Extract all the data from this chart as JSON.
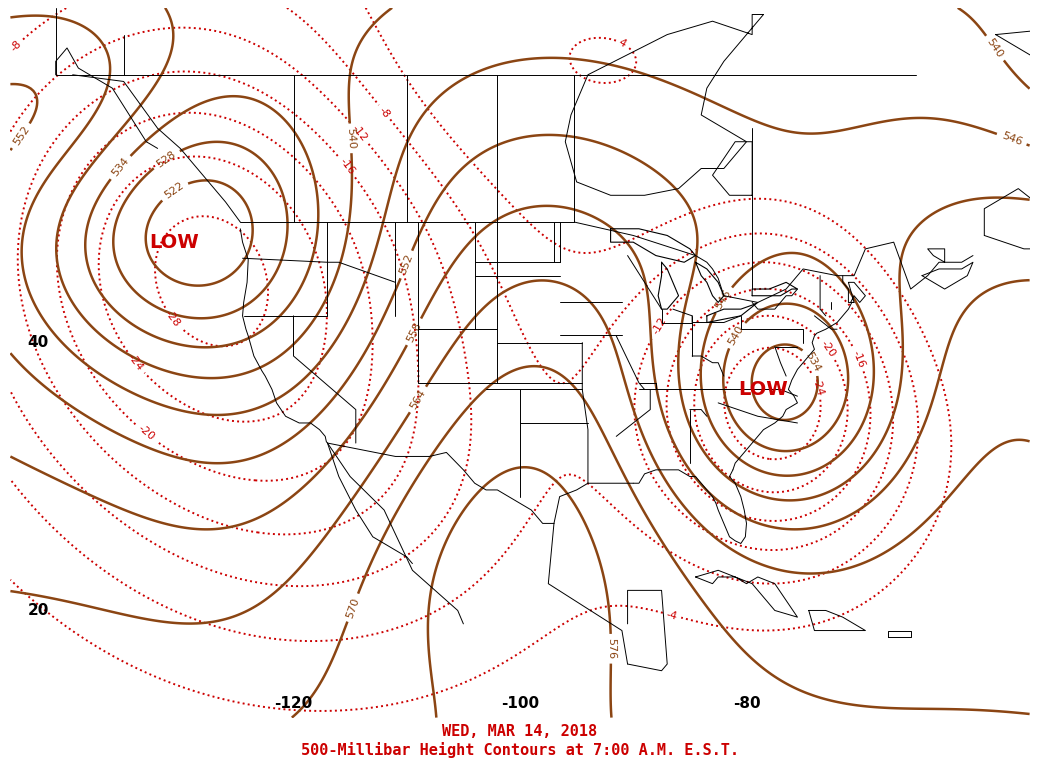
{
  "title_line1": "WED, MAR 14, 2018",
  "title_line2": "500-Millibar Height Contours at 7:00 A.M. E.S.T.",
  "title_color": "#cc0000",
  "background_color": "#ffffff",
  "contour_color": "#8B4513",
  "dotted_color": "#cc0000",
  "label_color_black": "#000000",
  "figsize": [
    10.4,
    7.8
  ],
  "dpi": 100,
  "lon_min": -145,
  "lon_max": -55,
  "lat_min": 12,
  "lat_max": 65,
  "lat_labels": [
    [
      "40",
      -0.08,
      40
    ],
    [
      "20",
      -0.08,
      20
    ]
  ],
  "lon_labels": [
    [
      "-120",
      -120,
      11.0
    ],
    [
      "-100",
      -100,
      11.0
    ],
    [
      "-80",
      -80,
      11.0
    ]
  ],
  "low_labels": [
    {
      "text": "LOW",
      "lon": -130.5,
      "lat": 47.5
    },
    {
      "text": "LOW",
      "lon": -78.5,
      "lat": 36.5
    }
  ]
}
